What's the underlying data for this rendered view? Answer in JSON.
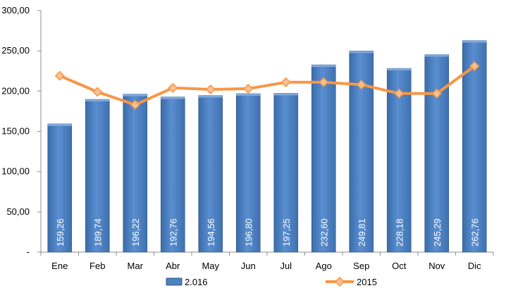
{
  "chart_data": {
    "type": "bar",
    "categories": [
      "Ene",
      "Feb",
      "Mar",
      "Abr",
      "May",
      "Jun",
      "Jul",
      "Ago",
      "Sep",
      "Oct",
      "Nov",
      "Dic"
    ],
    "series": [
      {
        "name": "2.016",
        "type": "bar",
        "values": [
          159.26,
          189.74,
          196.22,
          192.76,
          194.56,
          196.8,
          197.25,
          232.6,
          249.81,
          228.18,
          245.29,
          262.76
        ],
        "labels": [
          "159,26",
          "189,74",
          "196,22",
          "192,76",
          "194,56",
          "196,80",
          "197,25",
          "232,60",
          "249,81",
          "228,18",
          "245,29",
          "262,76"
        ],
        "color": "#4F81BD"
      },
      {
        "name": "2015",
        "type": "line",
        "marker": "diamond",
        "values": [
          219,
          199,
          183,
          204,
          202,
          203,
          211,
          211,
          208,
          197,
          197,
          231
        ],
        "color": "#F79646"
      }
    ],
    "y_ticks": [
      0,
      50,
      100,
      150,
      200,
      250,
      300
    ],
    "y_tick_labels": [
      "-",
      "50,00",
      "100,00",
      "150,00",
      "200,00",
      "250,00",
      "300,00"
    ],
    "ylim": [
      0,
      300
    ],
    "grid": false,
    "legend_position": "bottom"
  }
}
